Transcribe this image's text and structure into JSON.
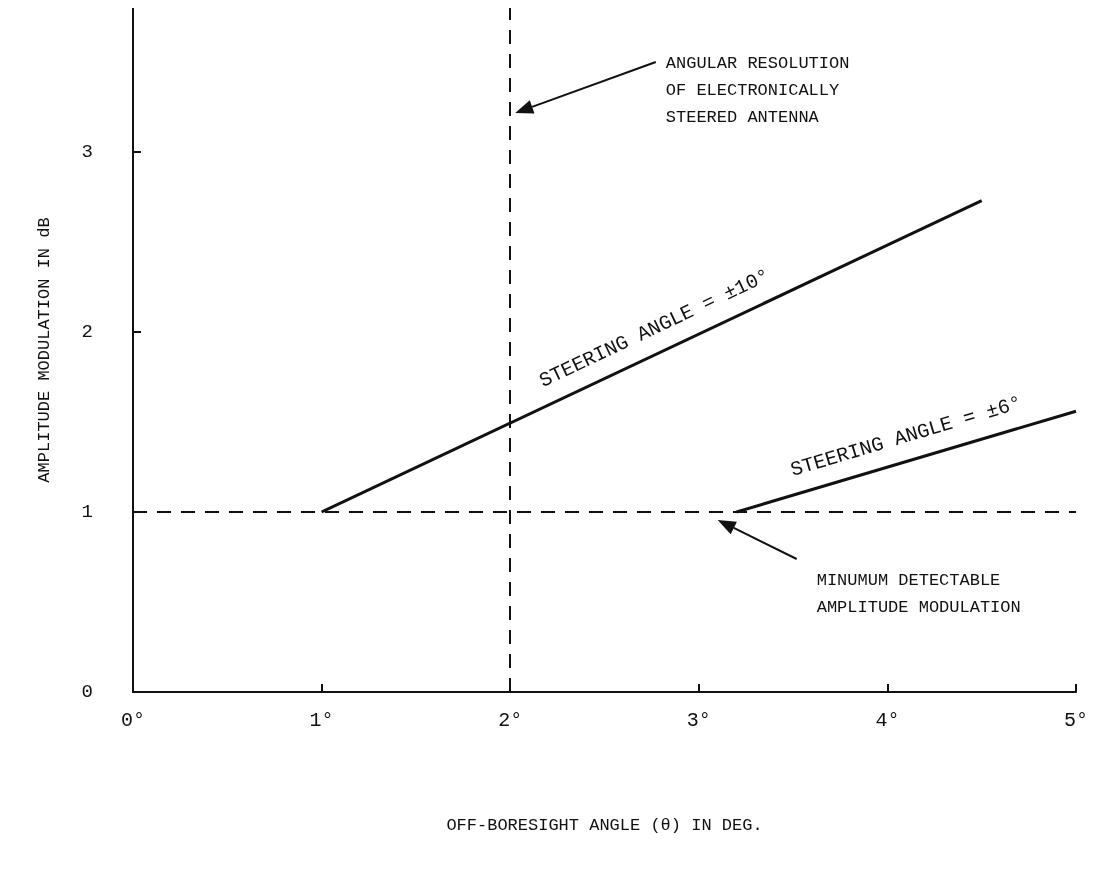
{
  "chart_data": {
    "type": "line",
    "xlabel": "OFF-BORESIGHT ANGLE (θ) IN DEG.",
    "ylabel": "AMPLITUDE MODULATION IN dB",
    "series": [
      {
        "name": "STEERING ANGLE = ±10°",
        "color": "#111111",
        "x": [
          1.0,
          4.5
        ],
        "values": [
          1.0,
          2.73
        ]
      },
      {
        "name": "STEERING ANGLE = ±6°",
        "color": "#111111",
        "x": [
          3.2,
          5.0
        ],
        "values": [
          1.0,
          1.56
        ]
      }
    ],
    "xlim": [
      0,
      5
    ],
    "xticks": [
      {
        "value": 0,
        "label": "0°"
      },
      {
        "value": 1,
        "label": "1°"
      },
      {
        "value": 2,
        "label": "2°"
      },
      {
        "value": 3,
        "label": "3°"
      },
      {
        "value": 4,
        "label": "4°"
      },
      {
        "value": 5,
        "label": "5°"
      }
    ],
    "ylim": [
      0,
      3.8
    ],
    "yticks": [
      0,
      1,
      2,
      3
    ],
    "ref_lines": [
      {
        "axis": "y",
        "value": 1,
        "line_style": "dashed",
        "color": "#111111"
      },
      {
        "axis": "x",
        "value": 2,
        "line_style": "dashed",
        "color": "#111111"
      }
    ],
    "annotations": [
      "ANGULAR RESOLUTION\nOF ELECTRONICALLY\nSTEERED ANTENNA",
      "MINUMUM DETECTABLE\nAMPLITUDE MODULATION"
    ],
    "grid": false,
    "legend": false,
    "marker": "none",
    "line_style": "solid"
  }
}
